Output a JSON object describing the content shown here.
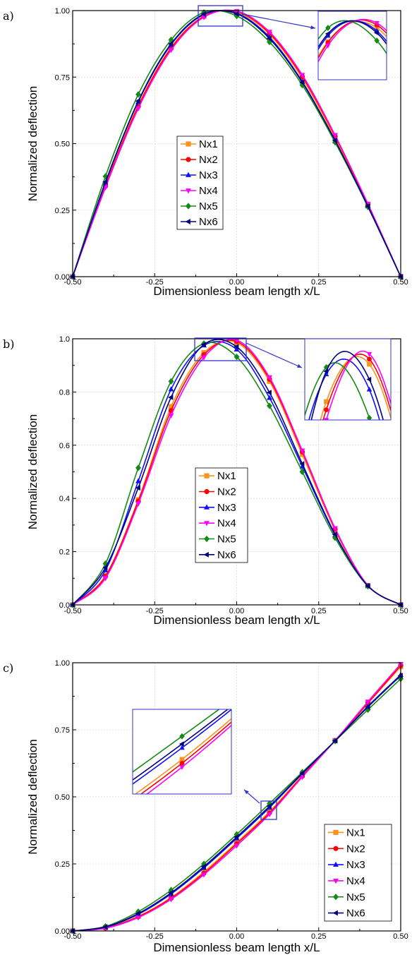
{
  "series_style": [
    {
      "name": "Nx1",
      "color": "#F7931E",
      "marker": "square"
    },
    {
      "name": "Nx2",
      "color": "#FF0000",
      "marker": "circle"
    },
    {
      "name": "Nx3",
      "color": "#1010FF",
      "marker": "triangle-up"
    },
    {
      "name": "Nx4",
      "color": "#FF00FF",
      "marker": "triangle-down"
    },
    {
      "name": "Nx5",
      "color": "#138A13",
      "marker": "diamond"
    },
    {
      "name": "Nx6",
      "color": "#000080",
      "marker": "triangle-left"
    }
  ],
  "colors": {
    "inset_box": "#3333CC",
    "grid": "#cccccc"
  },
  "chart_data": [
    {
      "panel_label": "a)",
      "type": "line",
      "xlabel": "Dimensionless beam length x/L",
      "ylabel": "Normalized deflection",
      "xlim": [
        -0.5,
        0.5
      ],
      "ylim": [
        0,
        1
      ],
      "xticks": [
        "-0.50",
        "-0.25",
        "0.00",
        "0.25",
        "0.50"
      ],
      "yticks": [
        "0.00",
        "0.25",
        "0.50",
        "0.75",
        "1.00"
      ],
      "grid": true,
      "legend_position": "center",
      "x": [
        -0.5,
        -0.4,
        -0.3,
        -0.2,
        -0.1,
        0.0,
        0.1,
        0.2,
        0.3,
        0.4,
        0.5
      ],
      "series": [
        {
          "name": "Nx1",
          "values": [
            0,
            0.345,
            0.645,
            0.862,
            0.979,
            0.993,
            0.91,
            0.745,
            0.52,
            0.268,
            0
          ]
        },
        {
          "name": "Nx2",
          "values": [
            0,
            0.34,
            0.64,
            0.858,
            0.978,
            0.996,
            0.915,
            0.752,
            0.528,
            0.272,
            0
          ]
        },
        {
          "name": "Nx3",
          "values": [
            0,
            0.353,
            0.657,
            0.872,
            0.985,
            0.99,
            0.9,
            0.733,
            0.51,
            0.265,
            0
          ]
        },
        {
          "name": "Nx4",
          "values": [
            0,
            0.335,
            0.632,
            0.852,
            0.975,
            0.998,
            0.92,
            0.758,
            0.532,
            0.274,
            0
          ]
        },
        {
          "name": "Nx5",
          "values": [
            0,
            0.377,
            0.685,
            0.89,
            0.993,
            0.98,
            0.882,
            0.72,
            0.505,
            0.262,
            0
          ]
        },
        {
          "name": "Nx6",
          "values": [
            0,
            0.356,
            0.66,
            0.875,
            0.987,
            0.988,
            0.895,
            0.73,
            0.512,
            0.265,
            0
          ]
        }
      ],
      "inset_zoom": {
        "xlim": [
          -0.12,
          0.02
        ],
        "ylim": [
          0.94,
          1.01
        ]
      }
    },
    {
      "panel_label": "b)",
      "type": "line",
      "xlabel": "Dimensionless beam length x/L",
      "ylabel": "Normalized deflection",
      "xlim": [
        -0.5,
        0.5
      ],
      "ylim": [
        0,
        1
      ],
      "xticks": [
        "-0.50",
        "-0.25",
        "0.00",
        "0.25",
        "0.50"
      ],
      "yticks": [
        "0.0",
        "0.2",
        "0.4",
        "0.6",
        "0.8",
        "1.0"
      ],
      "grid": true,
      "legend_position": "center",
      "x": [
        -0.5,
        -0.4,
        -0.3,
        -0.2,
        -0.1,
        0.0,
        0.1,
        0.2,
        0.3,
        0.4,
        0.5
      ],
      "series": [
        {
          "name": "Nx1",
          "values": [
            0,
            0.11,
            0.395,
            0.745,
            0.948,
            0.985,
            0.84,
            0.565,
            0.28,
            0.072,
            0
          ]
        },
        {
          "name": "Nx2",
          "values": [
            0,
            0.107,
            0.39,
            0.73,
            0.94,
            0.99,
            0.848,
            0.575,
            0.285,
            0.073,
            0
          ]
        },
        {
          "name": "Nx3",
          "values": [
            0,
            0.13,
            0.465,
            0.81,
            0.975,
            0.96,
            0.778,
            0.52,
            0.262,
            0.071,
            0
          ]
        },
        {
          "name": "Nx4",
          "values": [
            0,
            0.1,
            0.38,
            0.712,
            0.93,
            0.995,
            0.855,
            0.58,
            0.288,
            0.073,
            0
          ]
        },
        {
          "name": "Nx5",
          "values": [
            0,
            0.155,
            0.515,
            0.84,
            0.982,
            0.932,
            0.748,
            0.5,
            0.252,
            0.07,
            0
          ]
        },
        {
          "name": "Nx6",
          "values": [
            0,
            0.14,
            0.44,
            0.78,
            0.978,
            0.97,
            0.798,
            0.53,
            0.265,
            0.071,
            0
          ]
        }
      ],
      "inset_zoom": {
        "xlim": [
          -0.15,
          0.05
        ],
        "ylim": [
          0.93,
          1.01
        ]
      }
    },
    {
      "panel_label": "c)",
      "type": "line",
      "xlabel": "Dimensionless beam length x/L",
      "ylabel": "Normalized deflection",
      "xlim": [
        -0.5,
        0.5
      ],
      "ylim": [
        0,
        1
      ],
      "xticks": [
        "-0.50",
        "-0.25",
        "0.00",
        "0.25",
        "0.50"
      ],
      "yticks": [
        "0.00",
        "0.25",
        "0.50",
        "0.75",
        "1.00"
      ],
      "grid": true,
      "legend_position": "bottom-right",
      "x": [
        -0.5,
        -0.4,
        -0.3,
        -0.2,
        -0.1,
        0.0,
        0.1,
        0.2,
        0.3,
        0.4,
        0.5
      ],
      "series": [
        {
          "name": "Nx1",
          "values": [
            0,
            0.012,
            0.055,
            0.125,
            0.22,
            0.33,
            0.445,
            0.58,
            0.71,
            0.848,
            0.985
          ]
        },
        {
          "name": "Nx2",
          "values": [
            0,
            0.011,
            0.053,
            0.122,
            0.215,
            0.325,
            0.44,
            0.577,
            0.71,
            0.85,
            0.99
          ]
        },
        {
          "name": "Nx3",
          "values": [
            0,
            0.014,
            0.062,
            0.138,
            0.235,
            0.345,
            0.46,
            0.586,
            0.709,
            0.838,
            0.955
          ]
        },
        {
          "name": "Nx4",
          "values": [
            0,
            0.01,
            0.05,
            0.118,
            0.21,
            0.318,
            0.435,
            0.574,
            0.71,
            0.855,
            0.995
          ]
        },
        {
          "name": "Nx5",
          "values": [
            0,
            0.017,
            0.072,
            0.152,
            0.25,
            0.36,
            0.475,
            0.592,
            0.708,
            0.825,
            0.94
          ]
        },
        {
          "name": "Nx6",
          "values": [
            0,
            0.015,
            0.065,
            0.142,
            0.24,
            0.35,
            0.465,
            0.588,
            0.709,
            0.835,
            0.952
          ]
        }
      ],
      "inset_zoom": {
        "xlim": [
          0.06,
          0.14
        ],
        "ylim": [
          0.4,
          0.51
        ]
      }
    }
  ]
}
